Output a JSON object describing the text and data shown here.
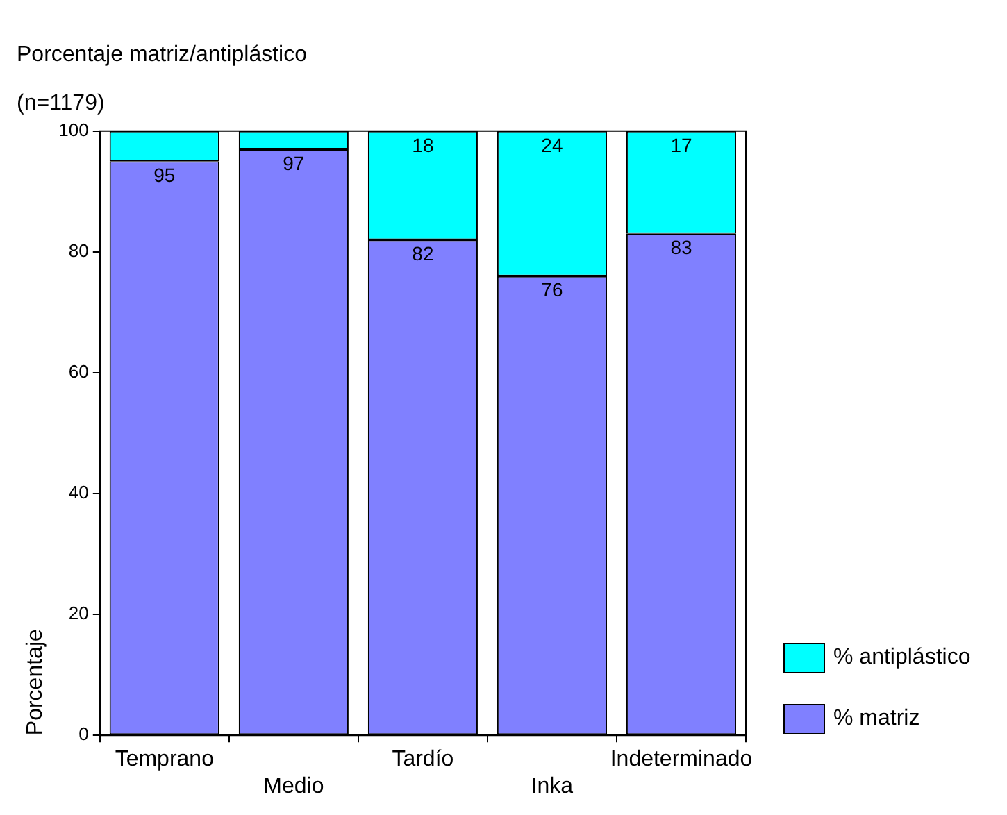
{
  "chart_data": {
    "type": "bar",
    "title": "Porcentaje matriz/antiplástico",
    "subtitle": "(n=1179)",
    "ylabel": "Porcentaje",
    "categories": [
      "Temprano",
      "Medio",
      "Tardío",
      "Inka",
      "Indeterminado"
    ],
    "stacked": true,
    "ylim": [
      0,
      100
    ],
    "yticks": [
      0,
      20,
      40,
      60,
      80,
      100
    ],
    "legend": "bottom right",
    "series": [
      {
        "name": "% matriz",
        "color": "#8080ff",
        "values": [
          95,
          97,
          82,
          76,
          83
        ],
        "value_labels": [
          "95",
          "97",
          "82",
          "76",
          "83"
        ]
      },
      {
        "name": "% antiplástico",
        "color": "#00ffff",
        "values": [
          5,
          3,
          18,
          24,
          17
        ],
        "value_labels": [
          null,
          null,
          "18",
          "24",
          "17"
        ]
      }
    ]
  }
}
